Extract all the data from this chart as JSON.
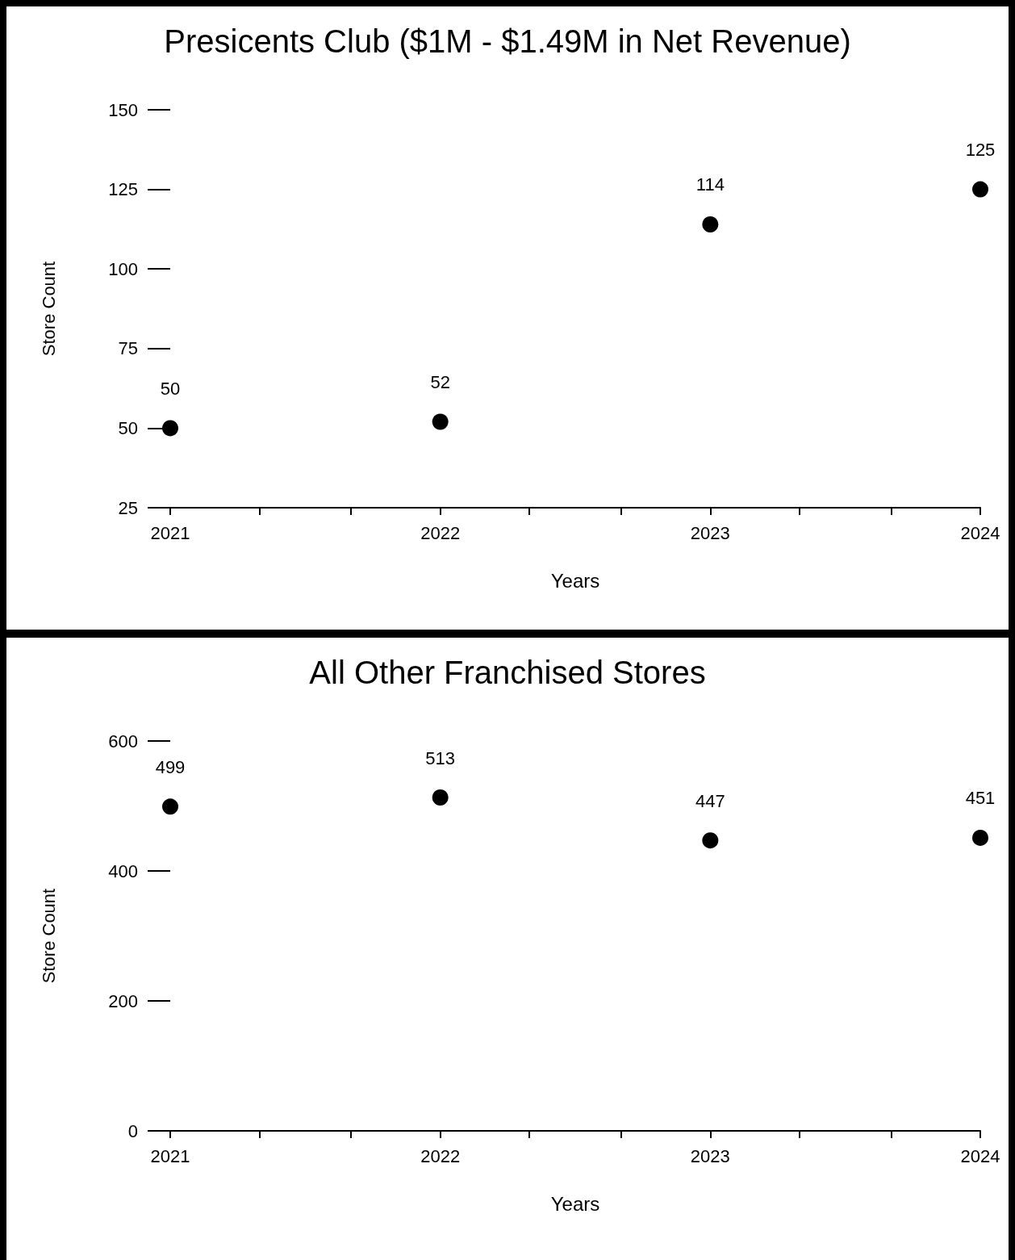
{
  "chart_data": [
    {
      "type": "scatter",
      "title": "Presicents Club ($1M - $1.49M in Net Revenue)",
      "xlabel": "Years",
      "ylabel": "Store Count",
      "x": [
        2021,
        2022,
        2023,
        2024
      ],
      "values": [
        50,
        52,
        114,
        125
      ],
      "color": "#000000",
      "marker": "circle",
      "data_labels": true,
      "grid": false,
      "xlim": [
        2021,
        2024
      ],
      "ylim": [
        25,
        150
      ],
      "xticks": [
        2021,
        {
          "value": 2021.33,
          "label": null
        },
        {
          "value": 2021.67,
          "label": null
        },
        2022,
        {
          "value": 2022.33,
          "label": null
        },
        {
          "value": 2022.67,
          "label": null
        },
        2023,
        {
          "value": 2023.33,
          "label": null
        },
        {
          "value": 2023.67,
          "label": null
        },
        2024
      ],
      "yticks": [
        25,
        50,
        75,
        100,
        125,
        150
      ]
    },
    {
      "type": "scatter",
      "title": "All Other Franchised Stores",
      "xlabel": "Years",
      "ylabel": "Store Count",
      "x": [
        2021,
        2022,
        2023,
        2024
      ],
      "values": [
        499,
        513,
        447,
        451
      ],
      "color": "#000000",
      "marker": "circle",
      "data_labels": true,
      "grid": false,
      "xlim": [
        2021,
        2024
      ],
      "ylim": [
        0,
        600
      ],
      "xticks": [
        2021,
        {
          "value": 2021.33,
          "label": null
        },
        {
          "value": 2021.67,
          "label": null
        },
        2022,
        {
          "value": 2022.33,
          "label": null
        },
        {
          "value": 2022.67,
          "label": null
        },
        2023,
        {
          "value": 2023.33,
          "label": null
        },
        {
          "value": 2023.67,
          "label": null
        },
        2024
      ],
      "yticks": [
        0,
        200,
        400,
        600
      ]
    }
  ]
}
